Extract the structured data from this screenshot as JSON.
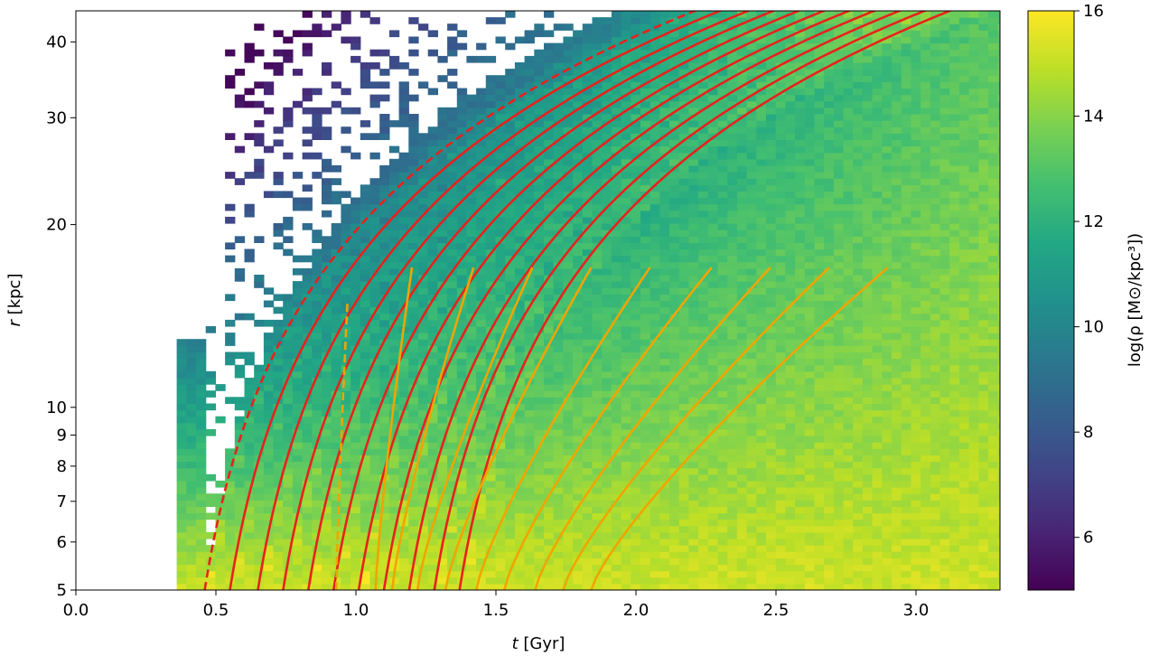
{
  "chart_data": {
    "type": "heatmap",
    "xlabel_var": "t",
    "xlabel_unit": " [Gyr]",
    "ylabel_var": "r",
    "ylabel_unit": " [kpc]",
    "colorbar_label": "log(ρ [M⊙/kpc³])",
    "xlim": [
      0.0,
      3.3
    ],
    "ylim": [
      5,
      45
    ],
    "y_scale": "log",
    "xticks": [
      0.0,
      0.5,
      1.0,
      1.5,
      2.0,
      2.5,
      3.0
    ],
    "xtick_labels": [
      "0.0",
      "0.5",
      "1.0",
      "1.5",
      "2.0",
      "2.5",
      "3.0"
    ],
    "yticks": [
      5,
      6,
      7,
      8,
      9,
      10,
      20,
      30,
      40
    ],
    "ytick_labels": [
      "5",
      "6",
      "7",
      "8",
      "9",
      "10",
      "20",
      "30",
      "40"
    ],
    "colorbar_range": [
      5,
      16
    ],
    "colorbar_ticks": [
      6,
      8,
      10,
      12,
      14,
      16
    ],
    "colorbar_tick_labels": [
      "6",
      "8",
      "10",
      "12",
      "14",
      "16"
    ],
    "colormap": "viridis",
    "density_field_description": "snapshots at ~0.035 Gyr spacing; density high (~15) at small r and decreasing outward; shells visible as ridges",
    "red_curves": {
      "color": "#e8211c",
      "dashed_start_times": [
        0.46
      ],
      "solid_start_times": [
        0.55,
        0.65,
        0.74,
        0.83,
        0.92,
        1.01,
        1.1,
        1.19,
        1.28,
        1.37
      ]
    },
    "orange_curves": {
      "color": "#f0a500",
      "dashed_start_time": 0.93,
      "solid_start_times": [
        1.07,
        1.13,
        1.22,
        1.32,
        1.43,
        1.53,
        1.64,
        1.74,
        1.84
      ],
      "solid_end_times": [
        1.2,
        1.42,
        1.63,
        1.84,
        2.05,
        2.27,
        2.48,
        2.69,
        2.9,
        3.11
      ],
      "end_radius": 17
    }
  }
}
